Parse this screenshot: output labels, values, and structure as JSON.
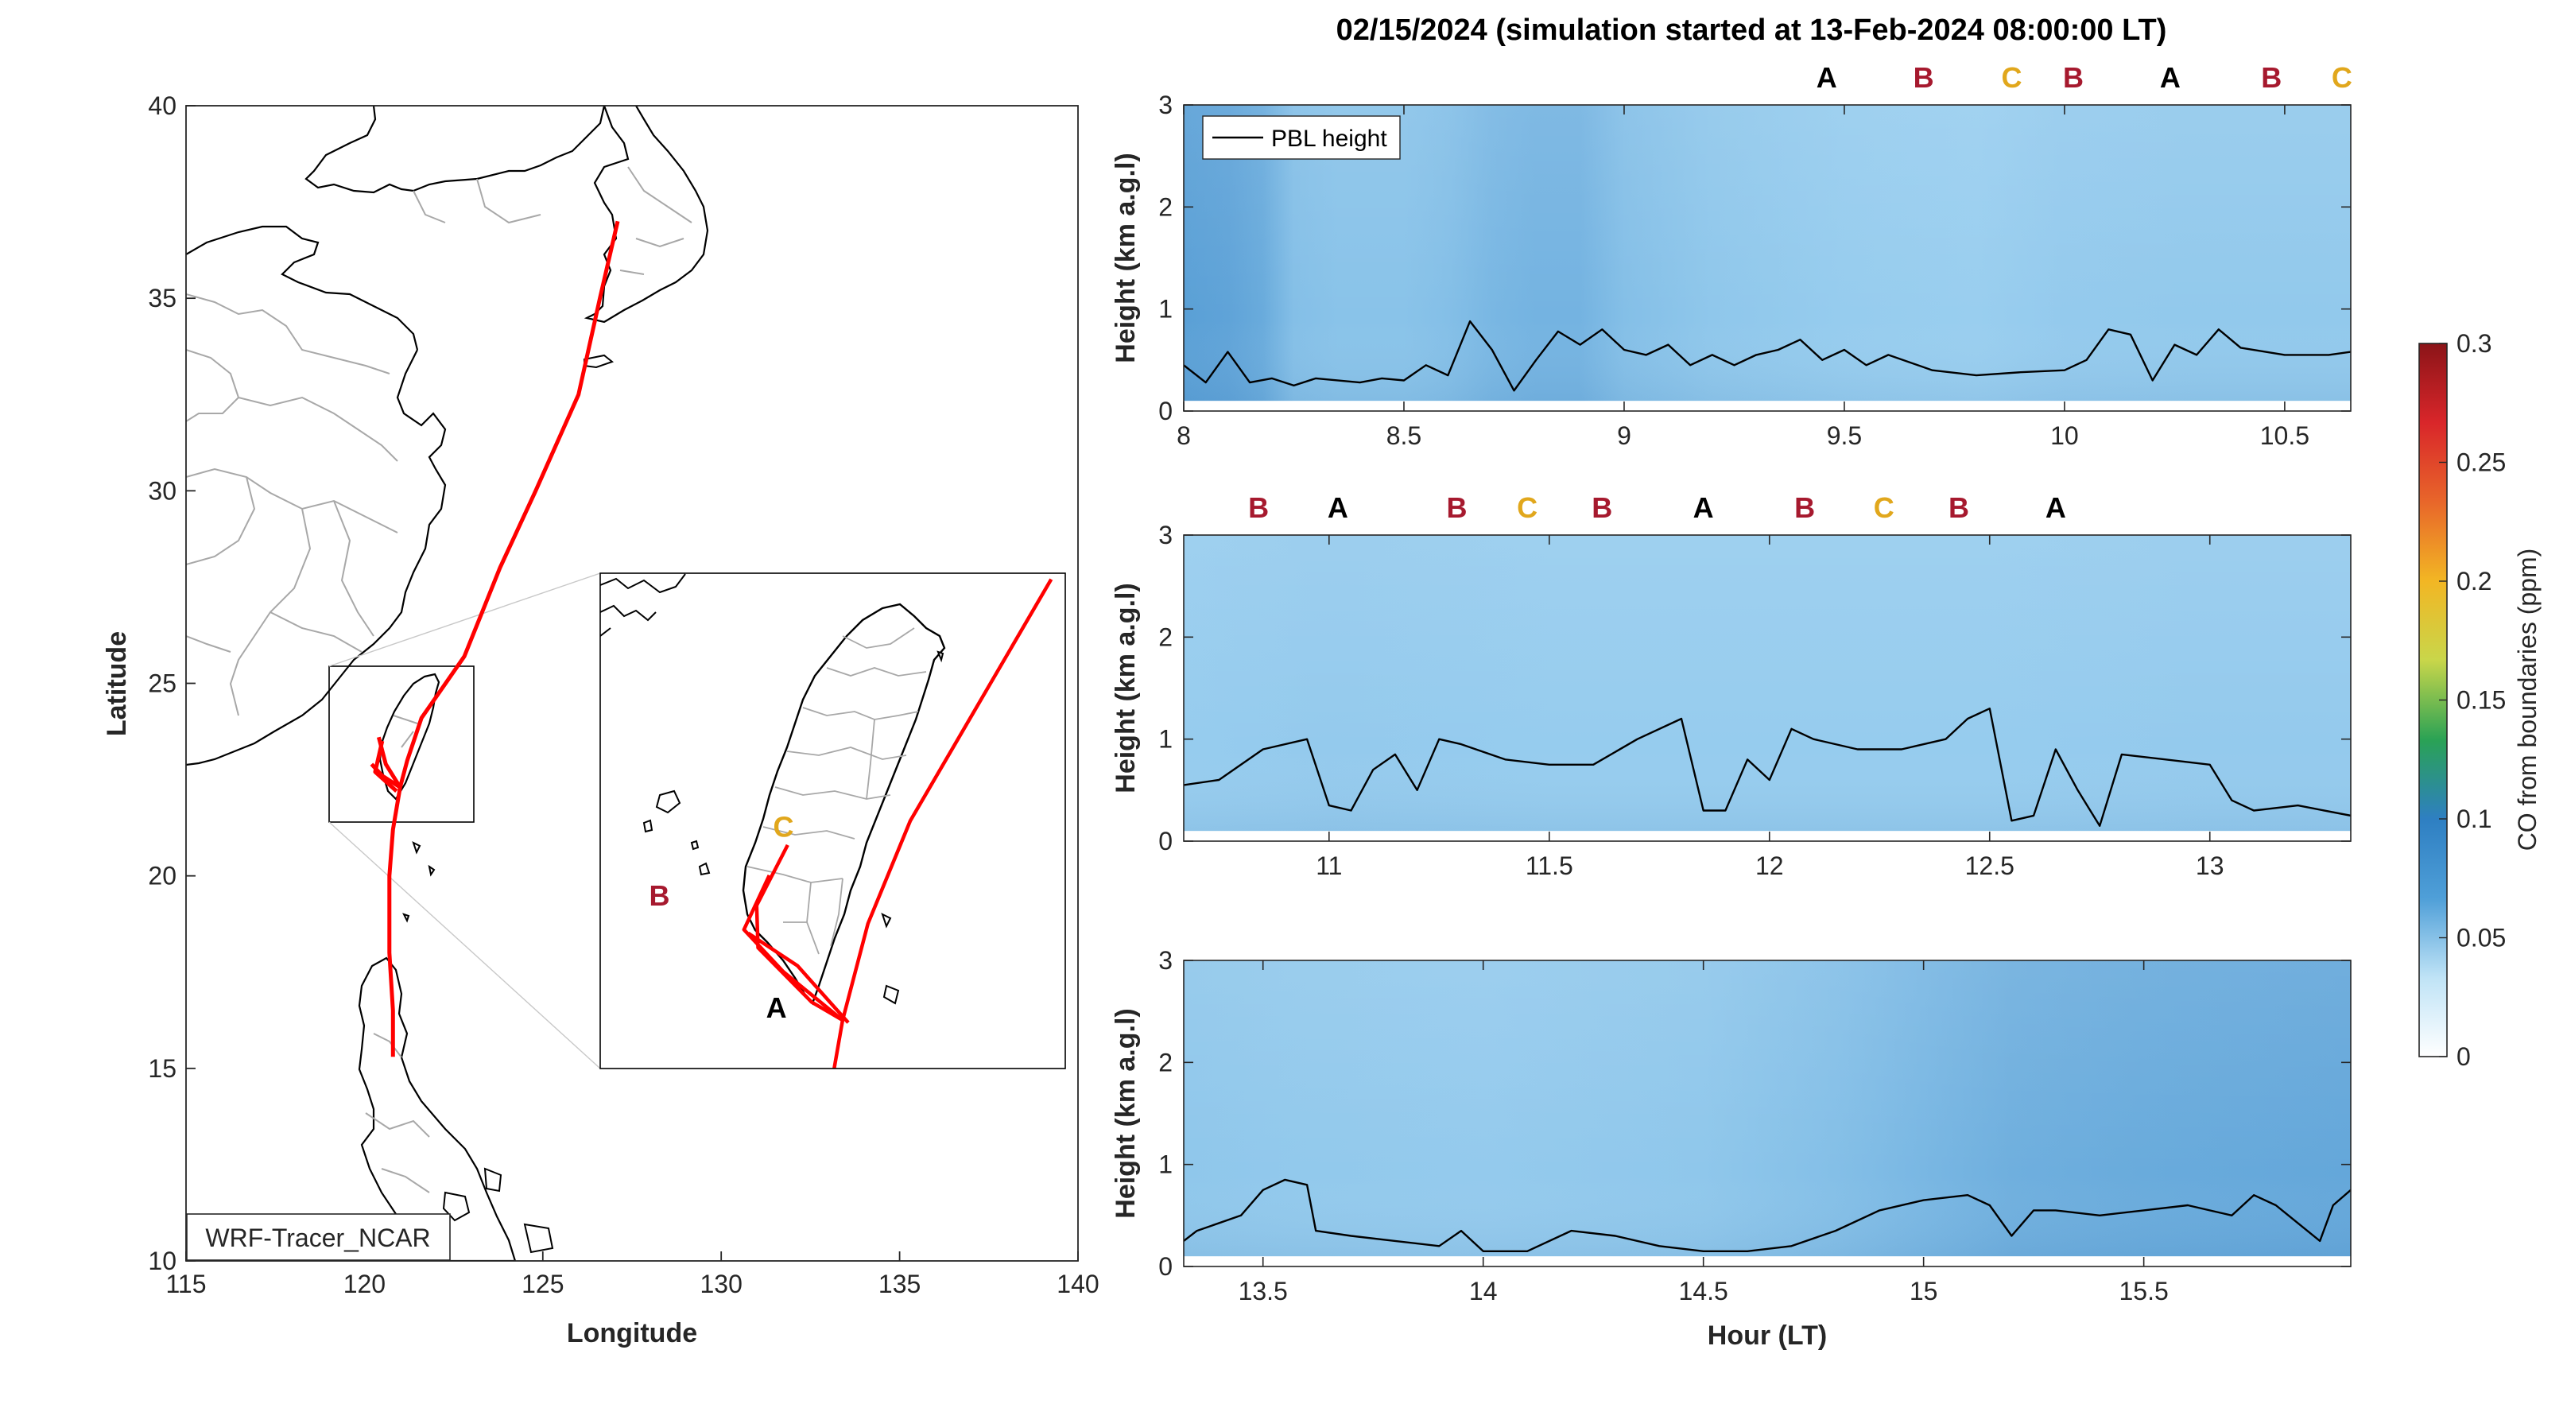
{
  "title": "02/15/2024 (simulation started at 13-Feb-2024 08:00:00 LT)",
  "colors": {
    "A": "#000000",
    "B": "#a6192e",
    "C": "#e1a71c",
    "track": "#ff0000",
    "coast": "#000000",
    "border": "#a8a8a8"
  },
  "chart_data": [
    {
      "type": "scatter",
      "name": "trajectory-map",
      "xlabel": "Longitude",
      "ylabel": "Latitude",
      "xlim": [
        115,
        140
      ],
      "ylim": [
        10,
        40
      ],
      "xticks": [
        115,
        120,
        125,
        130,
        135,
        140
      ],
      "yticks": [
        10,
        15,
        20,
        25,
        30,
        35,
        40
      ],
      "watermark": "WRF-Tracer_NCAR",
      "track": [
        [
          127.1,
          37.0
        ],
        [
          126.6,
          35.0
        ],
        [
          126.0,
          32.5
        ],
        [
          124.8,
          30.0
        ],
        [
          123.8,
          28.0
        ],
        [
          122.8,
          25.7
        ],
        [
          121.6,
          24.1
        ],
        [
          121.2,
          23.0
        ],
        [
          121.0,
          22.3
        ],
        [
          120.8,
          21.2
        ],
        [
          120.7,
          20.0
        ],
        [
          120.7,
          18.0
        ],
        [
          120.8,
          16.5
        ],
        [
          120.8,
          15.3
        ]
      ],
      "branches": [
        [
          [
            121.0,
            22.3
          ],
          [
            120.6,
            22.9
          ],
          [
            120.4,
            23.6
          ]
        ],
        [
          [
            120.9,
            22.2
          ],
          [
            120.3,
            22.7
          ],
          [
            120.5,
            23.5
          ]
        ],
        [
          [
            121.0,
            22.3
          ],
          [
            120.5,
            22.6
          ],
          [
            120.2,
            22.9
          ]
        ]
      ],
      "inset": {
        "xlim": [
          119.0,
          122.3
        ],
        "ylim": [
          21.5,
          25.6
        ],
        "labels": [
          {
            "text": "C",
            "lon": 120.3,
            "lat": 23.42
          },
          {
            "text": "B",
            "lon": 119.42,
            "lat": 22.85
          },
          {
            "text": "A",
            "lon": 120.25,
            "lat": 21.92
          }
        ],
        "tracks": [
          [
            [
              122.2,
              25.55
            ],
            [
              121.2,
              23.55
            ],
            [
              120.9,
              22.7
            ],
            [
              120.72,
              21.9
            ],
            [
              120.66,
              21.5
            ]
          ],
          [
            [
              120.33,
              23.35
            ],
            [
              120.11,
              22.85
            ],
            [
              120.12,
              22.5
            ],
            [
              120.5,
              22.05
            ],
            [
              120.72,
              21.9
            ]
          ],
          [
            [
              120.2,
              23.1
            ],
            [
              120.02,
              22.65
            ],
            [
              120.3,
              22.3
            ],
            [
              120.72,
              21.9
            ]
          ],
          [
            [
              120.05,
              22.62
            ],
            [
              120.4,
              22.35
            ],
            [
              120.76,
              21.88
            ]
          ]
        ]
      }
    },
    {
      "type": "heatmap",
      "name": "pbl-panel-1",
      "ylabel": "Height (km a.g.l)",
      "xlim": [
        8,
        10.65
      ],
      "ylim": [
        0,
        3
      ],
      "xticks": [
        "8",
        "8.5",
        "9",
        "9.5",
        "10",
        "10.5"
      ],
      "yticks": [
        "0",
        "1",
        "2",
        "3"
      ],
      "legend": "PBL height",
      "markers": [
        {
          "text": "A",
          "x": 9.46
        },
        {
          "text": "B",
          "x": 9.68
        },
        {
          "text": "C",
          "x": 9.88
        },
        {
          "text": "B",
          "x": 10.02
        },
        {
          "text": "A",
          "x": 10.24
        },
        {
          "text": "B",
          "x": 10.47
        },
        {
          "text": "C",
          "x": 10.63
        }
      ],
      "pbl": [
        [
          8.0,
          0.45
        ],
        [
          8.05,
          0.28
        ],
        [
          8.1,
          0.58
        ],
        [
          8.15,
          0.28
        ],
        [
          8.2,
          0.32
        ],
        [
          8.25,
          0.25
        ],
        [
          8.3,
          0.32
        ],
        [
          8.4,
          0.28
        ],
        [
          8.45,
          0.32
        ],
        [
          8.5,
          0.3
        ],
        [
          8.55,
          0.45
        ],
        [
          8.6,
          0.35
        ],
        [
          8.65,
          0.88
        ],
        [
          8.7,
          0.6
        ],
        [
          8.75,
          0.2
        ],
        [
          8.8,
          0.5
        ],
        [
          8.85,
          0.78
        ],
        [
          8.9,
          0.65
        ],
        [
          8.95,
          0.8
        ],
        [
          9.0,
          0.6
        ],
        [
          9.05,
          0.55
        ],
        [
          9.1,
          0.65
        ],
        [
          9.15,
          0.45
        ],
        [
          9.2,
          0.55
        ],
        [
          9.25,
          0.45
        ],
        [
          9.3,
          0.55
        ],
        [
          9.35,
          0.6
        ],
        [
          9.4,
          0.7
        ],
        [
          9.45,
          0.5
        ],
        [
          9.5,
          0.6
        ],
        [
          9.55,
          0.45
        ],
        [
          9.6,
          0.55
        ],
        [
          9.7,
          0.4
        ],
        [
          9.8,
          0.35
        ],
        [
          9.9,
          0.38
        ],
        [
          10.0,
          0.4
        ],
        [
          10.05,
          0.5
        ],
        [
          10.1,
          0.8
        ],
        [
          10.15,
          0.75
        ],
        [
          10.2,
          0.3
        ],
        [
          10.25,
          0.65
        ],
        [
          10.3,
          0.55
        ],
        [
          10.35,
          0.8
        ],
        [
          10.4,
          0.62
        ],
        [
          10.5,
          0.55
        ],
        [
          10.6,
          0.55
        ],
        [
          10.65,
          0.58
        ]
      ],
      "intensity": [
        [
          8.0,
          0.75
        ],
        [
          8.1,
          0.7
        ],
        [
          8.18,
          0.6
        ],
        [
          8.25,
          0.35
        ],
        [
          8.35,
          0.3
        ],
        [
          8.5,
          0.3
        ],
        [
          8.6,
          0.35
        ],
        [
          8.7,
          0.45
        ],
        [
          8.8,
          0.5
        ],
        [
          8.9,
          0.5
        ],
        [
          9.0,
          0.35
        ],
        [
          9.2,
          0.25
        ],
        [
          9.5,
          0.18
        ],
        [
          9.8,
          0.15
        ],
        [
          10.0,
          0.2
        ],
        [
          10.3,
          0.22
        ],
        [
          10.65,
          0.22
        ]
      ]
    },
    {
      "type": "heatmap",
      "name": "pbl-panel-2",
      "ylabel": "Height (km a.g.l)",
      "xlim": [
        10.67,
        13.32
      ],
      "ylim": [
        0,
        3
      ],
      "xticks": [
        "11",
        "11.5",
        "12",
        "12.5",
        "13"
      ],
      "yticks": [
        "0",
        "1",
        "2",
        "3"
      ],
      "markers": [
        {
          "text": "B",
          "x": 10.84
        },
        {
          "text": "A",
          "x": 11.02
        },
        {
          "text": "B",
          "x": 11.29
        },
        {
          "text": "C",
          "x": 11.45
        },
        {
          "text": "B",
          "x": 11.62
        },
        {
          "text": "A",
          "x": 11.85
        },
        {
          "text": "B",
          "x": 12.08
        },
        {
          "text": "C",
          "x": 12.26
        },
        {
          "text": "B",
          "x": 12.43
        },
        {
          "text": "A",
          "x": 12.65
        }
      ],
      "pbl": [
        [
          10.67,
          0.55
        ],
        [
          10.75,
          0.6
        ],
        [
          10.85,
          0.9
        ],
        [
          10.95,
          1.0
        ],
        [
          11.0,
          0.35
        ],
        [
          11.05,
          0.3
        ],
        [
          11.1,
          0.7
        ],
        [
          11.15,
          0.85
        ],
        [
          11.2,
          0.5
        ],
        [
          11.25,
          1.0
        ],
        [
          11.3,
          0.95
        ],
        [
          11.4,
          0.8
        ],
        [
          11.5,
          0.75
        ],
        [
          11.6,
          0.75
        ],
        [
          11.7,
          1.0
        ],
        [
          11.8,
          1.2
        ],
        [
          11.85,
          0.3
        ],
        [
          11.9,
          0.3
        ],
        [
          11.95,
          0.8
        ],
        [
          12.0,
          0.6
        ],
        [
          12.05,
          1.1
        ],
        [
          12.1,
          1.0
        ],
        [
          12.2,
          0.9
        ],
        [
          12.3,
          0.9
        ],
        [
          12.4,
          1.0
        ],
        [
          12.45,
          1.2
        ],
        [
          12.5,
          1.3
        ],
        [
          12.55,
          0.2
        ],
        [
          12.6,
          0.25
        ],
        [
          12.65,
          0.9
        ],
        [
          12.7,
          0.5
        ],
        [
          12.75,
          0.15
        ],
        [
          12.8,
          0.85
        ],
        [
          12.9,
          0.8
        ],
        [
          13.0,
          0.75
        ],
        [
          13.05,
          0.4
        ],
        [
          13.1,
          0.3
        ],
        [
          13.2,
          0.35
        ],
        [
          13.32,
          0.25
        ]
      ],
      "intensity": [
        [
          10.67,
          0.18
        ],
        [
          11.0,
          0.2
        ],
        [
          11.5,
          0.18
        ],
        [
          12.0,
          0.18
        ],
        [
          12.5,
          0.18
        ],
        [
          13.0,
          0.2
        ],
        [
          13.32,
          0.2
        ]
      ]
    },
    {
      "type": "heatmap",
      "name": "pbl-panel-3",
      "ylabel": "Height (km a.g.l)",
      "xlabel": "Hour (LT)",
      "xlim": [
        13.32,
        15.97
      ],
      "ylim": [
        0,
        3
      ],
      "xticks": [
        "13.5",
        "14",
        "14.5",
        "15",
        "15.5"
      ],
      "yticks": [
        "0",
        "1",
        "2",
        "3"
      ],
      "pbl": [
        [
          13.32,
          0.25
        ],
        [
          13.35,
          0.35
        ],
        [
          13.45,
          0.5
        ],
        [
          13.5,
          0.75
        ],
        [
          13.55,
          0.85
        ],
        [
          13.6,
          0.8
        ],
        [
          13.62,
          0.35
        ],
        [
          13.7,
          0.3
        ],
        [
          13.8,
          0.25
        ],
        [
          13.9,
          0.2
        ],
        [
          13.95,
          0.35
        ],
        [
          14.0,
          0.15
        ],
        [
          14.1,
          0.15
        ],
        [
          14.2,
          0.35
        ],
        [
          14.3,
          0.3
        ],
        [
          14.4,
          0.2
        ],
        [
          14.5,
          0.15
        ],
        [
          14.6,
          0.15
        ],
        [
          14.7,
          0.2
        ],
        [
          14.8,
          0.35
        ],
        [
          14.9,
          0.55
        ],
        [
          15.0,
          0.65
        ],
        [
          15.1,
          0.7
        ],
        [
          15.15,
          0.6
        ],
        [
          15.2,
          0.3
        ],
        [
          15.25,
          0.55
        ],
        [
          15.3,
          0.55
        ],
        [
          15.4,
          0.5
        ],
        [
          15.5,
          0.55
        ],
        [
          15.6,
          0.6
        ],
        [
          15.7,
          0.5
        ],
        [
          15.75,
          0.7
        ],
        [
          15.8,
          0.6
        ],
        [
          15.9,
          0.25
        ],
        [
          15.93,
          0.6
        ],
        [
          15.97,
          0.75
        ]
      ],
      "intensity": [
        [
          13.32,
          0.25
        ],
        [
          13.6,
          0.22
        ],
        [
          14.0,
          0.2
        ],
        [
          14.5,
          0.25
        ],
        [
          14.8,
          0.35
        ],
        [
          15.0,
          0.45
        ],
        [
          15.2,
          0.55
        ],
        [
          15.5,
          0.6
        ],
        [
          15.97,
          0.65
        ]
      ]
    }
  ],
  "colorbar": {
    "label": "CO from boundaries (ppm)",
    "min": 0,
    "max": 0.3,
    "ticks": [
      "0",
      "0.05",
      "0.1",
      "0.15",
      "0.2",
      "0.25",
      "0.3"
    ],
    "stops": [
      "#ffffff",
      "#bfe3f6",
      "#4f9fd8",
      "#2e7fc2",
      "#2aa255",
      "#c9d64a",
      "#f2b624",
      "#e8662a",
      "#d9262a",
      "#8b1418"
    ]
  }
}
